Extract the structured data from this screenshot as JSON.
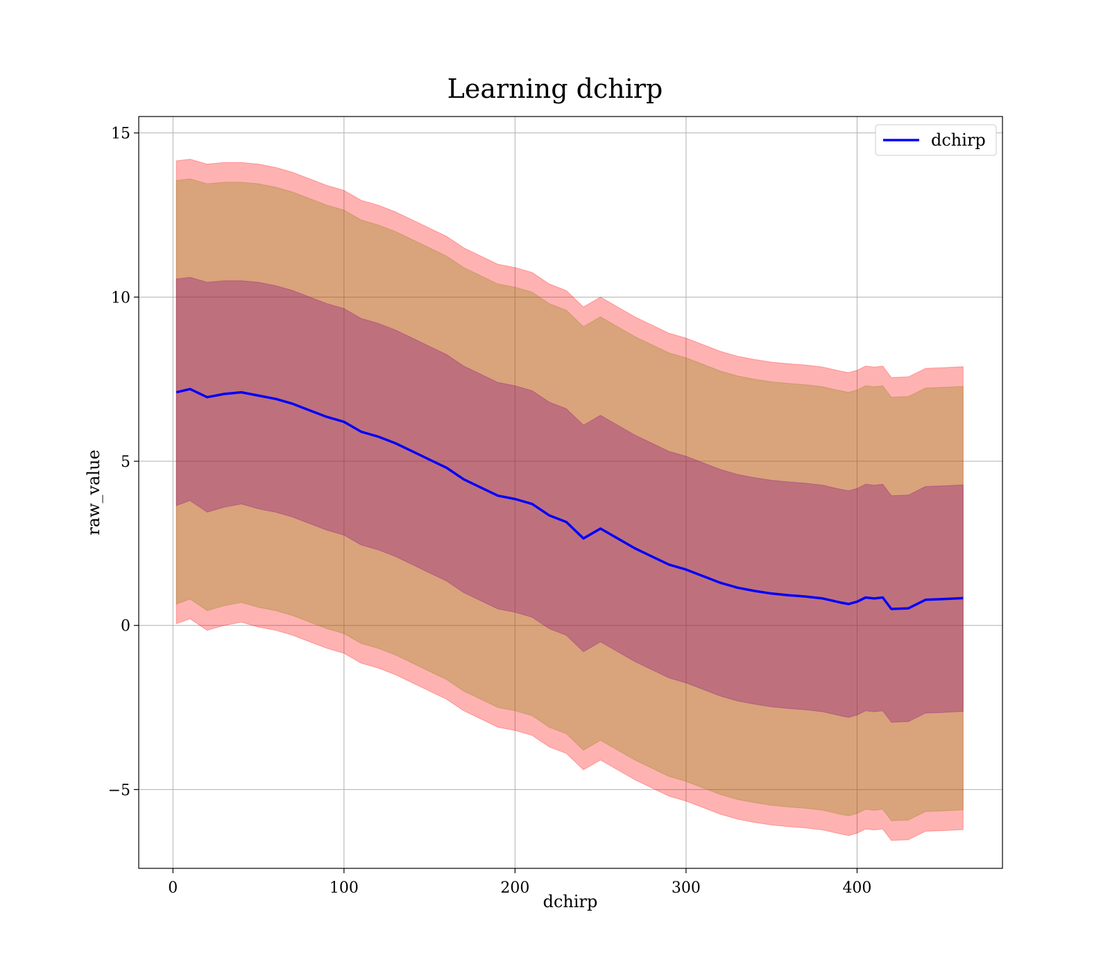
{
  "chart_data": {
    "type": "line",
    "title": "Learning dchirp",
    "xlabel": "dchirp",
    "ylabel": "raw_value",
    "xlim": [
      -20,
      485
    ],
    "ylim": [
      -7.4,
      15.5
    ],
    "xticks": [
      0,
      100,
      200,
      300,
      400
    ],
    "yticks": [
      -5,
      0,
      5,
      10,
      15
    ],
    "xtick_labels": [
      "0",
      "100",
      "200",
      "300",
      "400"
    ],
    "ytick_labels": [
      "−5",
      "0",
      "5",
      "10",
      "15"
    ],
    "grid": true,
    "legend": {
      "placement": "top-right",
      "entries": [
        "dchirp"
      ]
    },
    "series": [
      {
        "name": "dchirp",
        "color": "#0000ff",
        "x": [
          2,
          10,
          20,
          30,
          40,
          50,
          60,
          70,
          80,
          90,
          100,
          110,
          120,
          130,
          140,
          150,
          160,
          170,
          180,
          190,
          200,
          210,
          220,
          230,
          240,
          250,
          260,
          270,
          280,
          290,
          300,
          310,
          320,
          330,
          340,
          350,
          360,
          370,
          380,
          390,
          395,
          400,
          405,
          410,
          415,
          420,
          430,
          440,
          450,
          462
        ],
        "y": [
          7.1,
          7.2,
          6.95,
          7.05,
          7.1,
          7.0,
          6.9,
          6.75,
          6.55,
          6.35,
          6.2,
          5.9,
          5.75,
          5.55,
          5.3,
          5.05,
          4.8,
          4.45,
          4.2,
          3.95,
          3.85,
          3.7,
          3.35,
          3.15,
          2.65,
          2.95,
          2.65,
          2.35,
          2.1,
          1.85,
          1.7,
          1.5,
          1.3,
          1.15,
          1.05,
          0.97,
          0.92,
          0.88,
          0.82,
          0.7,
          0.65,
          0.72,
          0.85,
          0.82,
          0.85,
          0.5,
          0.52,
          0.78,
          0.8,
          0.83
        ]
      }
    ],
    "bands": [
      {
        "color": "#ff0000",
        "opacity": 0.3,
        "upper": [
          14.15,
          14.2,
          14.05,
          14.1,
          14.1,
          14.05,
          13.95,
          13.8,
          13.6,
          13.4,
          13.25,
          12.95,
          12.8,
          12.6,
          12.35,
          12.1,
          11.85,
          11.5,
          11.25,
          11.0,
          10.9,
          10.75,
          10.4,
          10.2,
          9.7,
          10.0,
          9.7,
          9.4,
          9.15,
          8.9,
          8.75,
          8.55,
          8.35,
          8.2,
          8.1,
          8.02,
          7.97,
          7.93,
          7.87,
          7.75,
          7.7,
          7.77,
          7.9,
          7.87,
          7.9,
          7.55,
          7.57,
          7.83,
          7.85,
          7.88
        ],
        "lower": [
          0.05,
          0.2,
          -0.15,
          -0.0,
          0.1,
          -0.05,
          -0.15,
          -0.3,
          -0.5,
          -0.7,
          -0.85,
          -1.15,
          -1.3,
          -1.5,
          -1.75,
          -2.0,
          -2.25,
          -2.6,
          -2.85,
          -3.1,
          -3.2,
          -3.35,
          -3.7,
          -3.9,
          -4.4,
          -4.1,
          -4.4,
          -4.7,
          -4.95,
          -5.2,
          -5.35,
          -5.55,
          -5.75,
          -5.9,
          -6.0,
          -6.08,
          -6.13,
          -6.17,
          -6.23,
          -6.35,
          -6.4,
          -6.33,
          -6.2,
          -6.23,
          -6.2,
          -6.55,
          -6.53,
          -6.27,
          -6.25,
          -6.22
        ]
      },
      {
        "color": "#808000",
        "opacity": 0.3,
        "upper": [
          13.55,
          13.6,
          13.45,
          13.5,
          13.5,
          13.45,
          13.35,
          13.2,
          13.0,
          12.8,
          12.65,
          12.35,
          12.2,
          12.0,
          11.75,
          11.5,
          11.25,
          10.9,
          10.65,
          10.4,
          10.3,
          10.15,
          9.8,
          9.6,
          9.1,
          9.4,
          9.1,
          8.8,
          8.55,
          8.3,
          8.15,
          7.95,
          7.75,
          7.6,
          7.5,
          7.42,
          7.37,
          7.33,
          7.27,
          7.15,
          7.1,
          7.17,
          7.3,
          7.27,
          7.3,
          6.95,
          6.97,
          7.23,
          7.25,
          7.28
        ],
        "lower": [
          0.65,
          0.8,
          0.45,
          0.6,
          0.7,
          0.55,
          0.45,
          0.3,
          0.1,
          -0.1,
          -0.25,
          -0.55,
          -0.7,
          -0.9,
          -1.15,
          -1.4,
          -1.65,
          -2.0,
          -2.25,
          -2.5,
          -2.6,
          -2.75,
          -3.1,
          -3.3,
          -3.8,
          -3.5,
          -3.8,
          -4.1,
          -4.35,
          -4.6,
          -4.75,
          -4.95,
          -5.15,
          -5.3,
          -5.4,
          -5.48,
          -5.53,
          -5.57,
          -5.63,
          -5.75,
          -5.8,
          -5.73,
          -5.6,
          -5.63,
          -5.6,
          -5.95,
          -5.93,
          -5.67,
          -5.65,
          -5.62
        ]
      },
      {
        "color": "#800080",
        "opacity": 0.3,
        "upper": [
          10.55,
          10.6,
          10.45,
          10.5,
          10.5,
          10.45,
          10.35,
          10.2,
          10.0,
          9.8,
          9.65,
          9.35,
          9.2,
          9.0,
          8.75,
          8.5,
          8.25,
          7.9,
          7.65,
          7.4,
          7.3,
          7.15,
          6.8,
          6.6,
          6.1,
          6.4,
          6.1,
          5.8,
          5.55,
          5.3,
          5.15,
          4.95,
          4.75,
          4.6,
          4.5,
          4.42,
          4.37,
          4.33,
          4.27,
          4.15,
          4.1,
          4.17,
          4.3,
          4.27,
          4.3,
          3.95,
          3.97,
          4.23,
          4.25,
          4.28
        ],
        "lower": [
          3.65,
          3.8,
          3.45,
          3.6,
          3.7,
          3.55,
          3.45,
          3.3,
          3.1,
          2.9,
          2.75,
          2.45,
          2.3,
          2.1,
          1.85,
          1.6,
          1.35,
          1.0,
          0.75,
          0.5,
          0.4,
          0.25,
          -0.1,
          -0.3,
          -0.8,
          -0.5,
          -0.8,
          -1.1,
          -1.35,
          -1.6,
          -1.75,
          -1.95,
          -2.15,
          -2.3,
          -2.4,
          -2.48,
          -2.53,
          -2.57,
          -2.63,
          -2.75,
          -2.8,
          -2.73,
          -2.6,
          -2.63,
          -2.6,
          -2.95,
          -2.93,
          -2.67,
          -2.65,
          -2.62
        ]
      }
    ]
  }
}
